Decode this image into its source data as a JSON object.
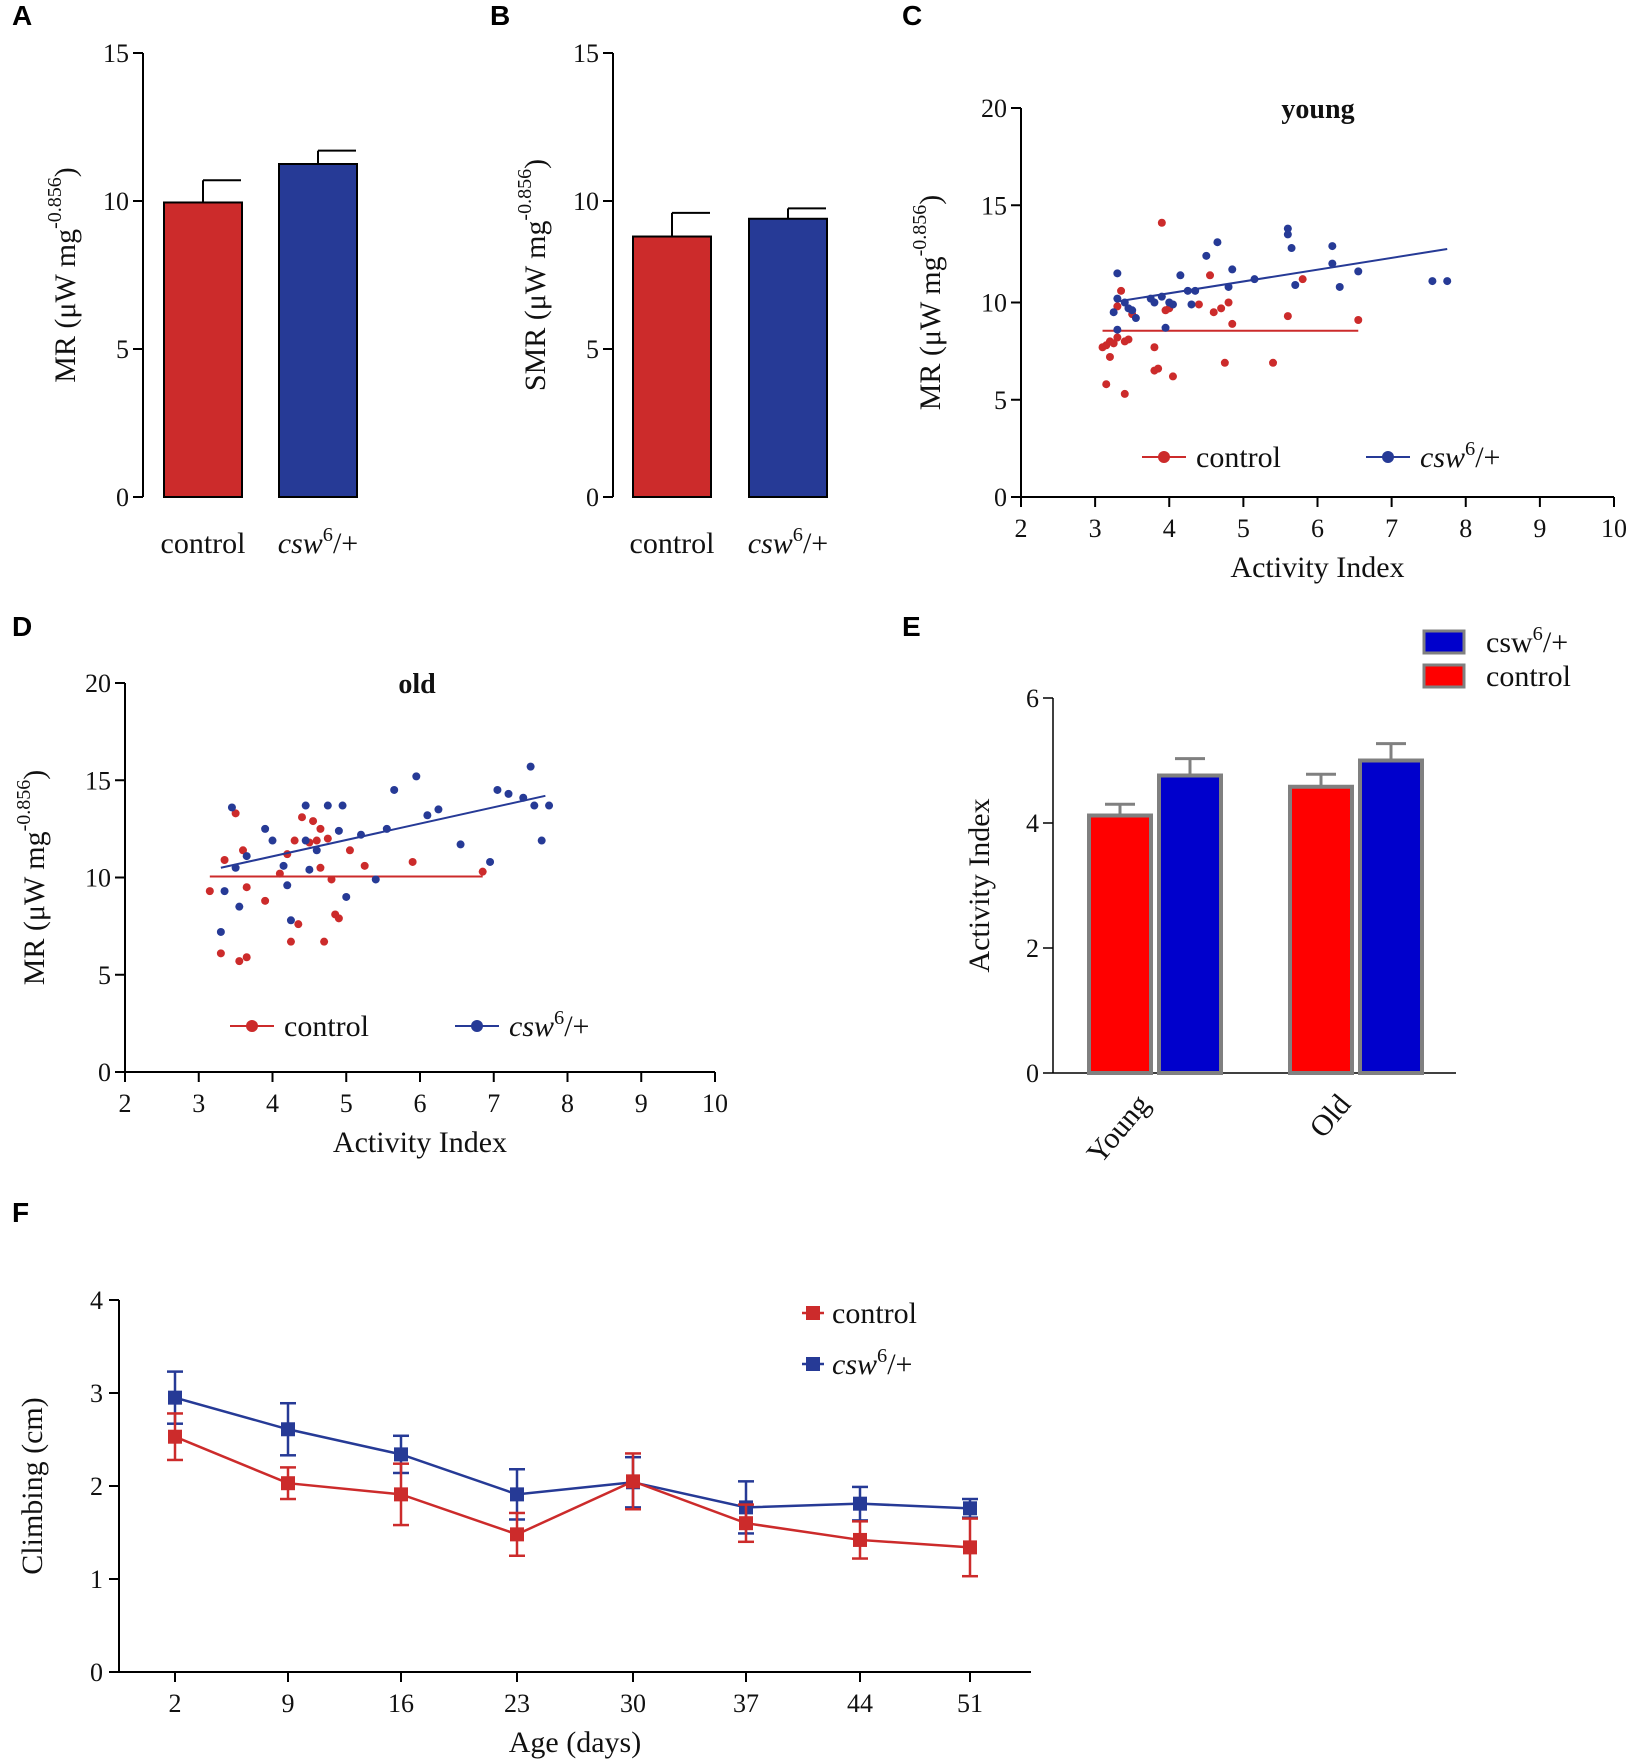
{
  "colors": {
    "control": "#cc2b2b",
    "csw": "#263a96",
    "control_e": "#ff0000",
    "csw_e": "#0000cc",
    "edge_e": "#808080"
  },
  "panels": {
    "A": "A",
    "B": "B",
    "C": "C",
    "D": "D",
    "E": "E",
    "F": "F"
  },
  "chart_data": [
    {
      "id": "A",
      "type": "bar",
      "categories": [
        "control",
        "csw6/+"
      ],
      "category_labels": [
        {
          "main": "control",
          "sup": "",
          "tail": ""
        },
        {
          "main": "csw",
          "sup": "6",
          "tail": "/+"
        }
      ],
      "values": [
        9.95,
        11.25
      ],
      "errors": [
        0.75,
        0.45
      ],
      "ylabel": "MR (μW mg",
      "ylabel_sup": "-0.856",
      "ylabel_tail": ")",
      "ylim": [
        0,
        15
      ],
      "yticks": [
        "0",
        "5",
        "10",
        "15"
      ]
    },
    {
      "id": "B",
      "type": "bar",
      "categories": [
        "control",
        "csw6/+"
      ],
      "category_labels": [
        {
          "main": "control",
          "sup": "",
          "tail": ""
        },
        {
          "main": "csw",
          "sup": "6",
          "tail": "/+"
        }
      ],
      "values": [
        8.8,
        9.4
      ],
      "errors": [
        0.8,
        0.35
      ],
      "ylabel": "SMR (μW mg",
      "ylabel_sup": "-0.856",
      "ylabel_tail": ")",
      "ylim": [
        0,
        15
      ],
      "yticks": [
        "0",
        "5",
        "10",
        "15"
      ]
    },
    {
      "id": "C",
      "type": "scatter",
      "title": "young",
      "xlabel": "Activity Index",
      "ylabel": "MR (μW mg",
      "ylabel_sup": "-0.856",
      "ylabel_tail": ")",
      "xlim": [
        2,
        10
      ],
      "ylim": [
        0,
        20
      ],
      "xticks": [
        "2",
        "3",
        "4",
        "5",
        "6",
        "7",
        "8",
        "9",
        "10"
      ],
      "yticks": [
        "0",
        "5",
        "10",
        "15",
        "20"
      ],
      "legend": [
        {
          "name": "control",
          "sup": "",
          "tail": ""
        },
        {
          "name": "csw",
          "sup": "6",
          "tail": "/+"
        }
      ],
      "series": [
        {
          "name": "control",
          "fit": {
            "x": [
              3.1,
              6.55
            ],
            "y": [
              8.55,
              8.55
            ]
          },
          "points": [
            [
              3.1,
              7.7
            ],
            [
              3.15,
              7.8
            ],
            [
              3.2,
              8.0
            ],
            [
              3.25,
              7.9
            ],
            [
              3.3,
              8.2
            ],
            [
              3.3,
              9.8
            ],
            [
              3.35,
              10.6
            ],
            [
              3.4,
              8.0
            ],
            [
              3.45,
              8.1
            ],
            [
              3.5,
              9.4
            ],
            [
              3.15,
              5.8
            ],
            [
              3.4,
              5.3
            ],
            [
              3.2,
              7.2
            ],
            [
              3.8,
              7.7
            ],
            [
              3.8,
              6.5
            ],
            [
              3.85,
              6.6
            ],
            [
              3.9,
              14.1
            ],
            [
              3.95,
              9.6
            ],
            [
              4.0,
              9.7
            ],
            [
              4.05,
              6.2
            ],
            [
              4.4,
              9.9
            ],
            [
              4.55,
              11.4
            ],
            [
              4.6,
              9.5
            ],
            [
              4.7,
              9.7
            ],
            [
              4.75,
              6.9
            ],
            [
              4.8,
              10.0
            ],
            [
              4.85,
              8.9
            ],
            [
              5.4,
              6.9
            ],
            [
              5.6,
              9.3
            ],
            [
              5.8,
              11.2
            ],
            [
              6.55,
              9.1
            ]
          ]
        },
        {
          "name": "csw6/+",
          "fit": {
            "x": [
              3.3,
              7.75
            ],
            "y": [
              10.05,
              12.75
            ]
          },
          "points": [
            [
              3.25,
              9.5
            ],
            [
              3.3,
              10.2
            ],
            [
              3.3,
              11.5
            ],
            [
              3.3,
              8.6
            ],
            [
              3.4,
              10.0
            ],
            [
              3.45,
              9.7
            ],
            [
              3.5,
              9.6
            ],
            [
              3.55,
              9.2
            ],
            [
              3.75,
              10.2
            ],
            [
              3.8,
              10.0
            ],
            [
              3.9,
              10.3
            ],
            [
              3.95,
              8.7
            ],
            [
              4.0,
              10.0
            ],
            [
              4.05,
              9.9
            ],
            [
              4.15,
              11.4
            ],
            [
              4.25,
              10.6
            ],
            [
              4.3,
              9.9
            ],
            [
              4.35,
              10.6
            ],
            [
              4.5,
              12.4
            ],
            [
              4.65,
              13.1
            ],
            [
              4.8,
              10.8
            ],
            [
              4.85,
              11.7
            ],
            [
              5.15,
              11.2
            ],
            [
              5.6,
              13.8
            ],
            [
              5.6,
              13.5
            ],
            [
              5.65,
              12.8
            ],
            [
              5.7,
              10.9
            ],
            [
              6.2,
              12.9
            ],
            [
              6.2,
              12.0
            ],
            [
              6.3,
              10.8
            ],
            [
              6.55,
              11.6
            ],
            [
              7.55,
              11.1
            ],
            [
              7.75,
              11.1
            ]
          ]
        }
      ]
    },
    {
      "id": "D",
      "type": "scatter",
      "title": "old",
      "xlabel": "Activity Index",
      "ylabel": "MR (μW mg",
      "ylabel_sup": "-0.856",
      "ylabel_tail": ")",
      "xlim": [
        2,
        10
      ],
      "ylim": [
        0,
        20
      ],
      "xticks": [
        "2",
        "3",
        "4",
        "5",
        "6",
        "7",
        "8",
        "9",
        "10"
      ],
      "yticks": [
        "0",
        "5",
        "10",
        "15",
        "20"
      ],
      "legend": [
        {
          "name": "control",
          "sup": "",
          "tail": ""
        },
        {
          "name": "csw",
          "sup": "6",
          "tail": "/+"
        }
      ],
      "series": [
        {
          "name": "control",
          "fit": {
            "x": [
              3.15,
              6.85
            ],
            "y": [
              10.05,
              10.05
            ]
          },
          "points": [
            [
              3.15,
              9.3
            ],
            [
              3.3,
              6.1
            ],
            [
              3.35,
              10.9
            ],
            [
              3.5,
              13.3
            ],
            [
              3.6,
              11.4
            ],
            [
              3.65,
              9.5
            ],
            [
              3.55,
              5.7
            ],
            [
              3.65,
              5.9
            ],
            [
              3.9,
              8.8
            ],
            [
              4.1,
              10.2
            ],
            [
              4.2,
              11.2
            ],
            [
              4.25,
              6.7
            ],
            [
              4.3,
              11.9
            ],
            [
              4.35,
              7.6
            ],
            [
              4.4,
              13.1
            ],
            [
              4.5,
              11.8
            ],
            [
              4.55,
              12.9
            ],
            [
              4.6,
              11.9
            ],
            [
              4.65,
              12.5
            ],
            [
              4.65,
              10.5
            ],
            [
              4.7,
              6.7
            ],
            [
              4.75,
              12.0
            ],
            [
              4.8,
              9.9
            ],
            [
              4.85,
              8.1
            ],
            [
              4.9,
              7.9
            ],
            [
              5.05,
              11.4
            ],
            [
              5.25,
              10.6
            ],
            [
              5.9,
              10.8
            ],
            [
              6.85,
              10.3
            ]
          ]
        },
        {
          "name": "csw6/+",
          "fit": {
            "x": [
              3.3,
              7.7
            ],
            "y": [
              10.5,
              14.2
            ]
          },
          "points": [
            [
              3.3,
              7.2
            ],
            [
              3.35,
              9.3
            ],
            [
              3.45,
              13.6
            ],
            [
              3.5,
              10.5
            ],
            [
              3.55,
              8.5
            ],
            [
              3.65,
              11.1
            ],
            [
              3.9,
              12.5
            ],
            [
              4.0,
              11.9
            ],
            [
              4.15,
              10.6
            ],
            [
              4.2,
              9.6
            ],
            [
              4.25,
              7.8
            ],
            [
              4.45,
              13.7
            ],
            [
              4.45,
              11.9
            ],
            [
              4.5,
              10.4
            ],
            [
              4.6,
              11.4
            ],
            [
              4.75,
              13.7
            ],
            [
              4.9,
              12.4
            ],
            [
              4.95,
              13.7
            ],
            [
              5.0,
              9.0
            ],
            [
              5.2,
              12.2
            ],
            [
              5.4,
              9.9
            ],
            [
              5.55,
              12.5
            ],
            [
              5.65,
              14.5
            ],
            [
              5.95,
              15.2
            ],
            [
              6.1,
              13.2
            ],
            [
              6.25,
              13.5
            ],
            [
              6.55,
              11.7
            ],
            [
              6.95,
              10.8
            ],
            [
              7.05,
              14.5
            ],
            [
              7.2,
              14.3
            ],
            [
              7.4,
              14.1
            ],
            [
              7.5,
              15.7
            ],
            [
              7.55,
              13.7
            ],
            [
              7.65,
              11.9
            ],
            [
              7.75,
              13.7
            ]
          ]
        }
      ]
    },
    {
      "id": "E",
      "type": "bar",
      "categories": [
        "Young",
        "Old"
      ],
      "ylabel": "Activity Index",
      "ylim": [
        0,
        6
      ],
      "yticks": [
        "0",
        "2",
        "4",
        "6"
      ],
      "legend": [
        {
          "name": "csw",
          "sup": "6",
          "tail": "/+"
        },
        {
          "name": "control",
          "sup": "",
          "tail": ""
        }
      ],
      "series": [
        {
          "name": "control",
          "values": [
            4.12,
            4.58
          ],
          "errors": [
            0.18,
            0.2
          ]
        },
        {
          "name": "csw6/+",
          "values": [
            4.76,
            5.0
          ],
          "errors": [
            0.27,
            0.27
          ]
        }
      ]
    },
    {
      "id": "F",
      "type": "line",
      "x": [
        2,
        9,
        16,
        23,
        30,
        37,
        44,
        51
      ],
      "xticks": [
        "2",
        "9",
        "16",
        "23",
        "30",
        "37",
        "44",
        "51"
      ],
      "yticks": [
        "0",
        "1",
        "2",
        "3",
        "4"
      ],
      "xlabel": "Age (days)",
      "ylabel": "Climbing (cm)",
      "ylim": [
        0,
        4
      ],
      "legend": [
        {
          "name": "control",
          "sup": "",
          "tail": ""
        },
        {
          "name": "csw",
          "sup": "6",
          "tail": "/+"
        }
      ],
      "series": [
        {
          "name": "control",
          "values": [
            2.53,
            2.03,
            1.91,
            1.48,
            2.05,
            1.6,
            1.42,
            1.34
          ],
          "errors": [
            0.25,
            0.17,
            0.33,
            0.23,
            0.3,
            0.2,
            0.2,
            0.31
          ]
        },
        {
          "name": "csw6/+",
          "values": [
            2.95,
            2.61,
            2.34,
            1.91,
            2.04,
            1.77,
            1.81,
            1.76
          ],
          "errors": [
            0.28,
            0.28,
            0.2,
            0.27,
            0.27,
            0.28,
            0.18,
            0.1
          ]
        }
      ]
    }
  ]
}
